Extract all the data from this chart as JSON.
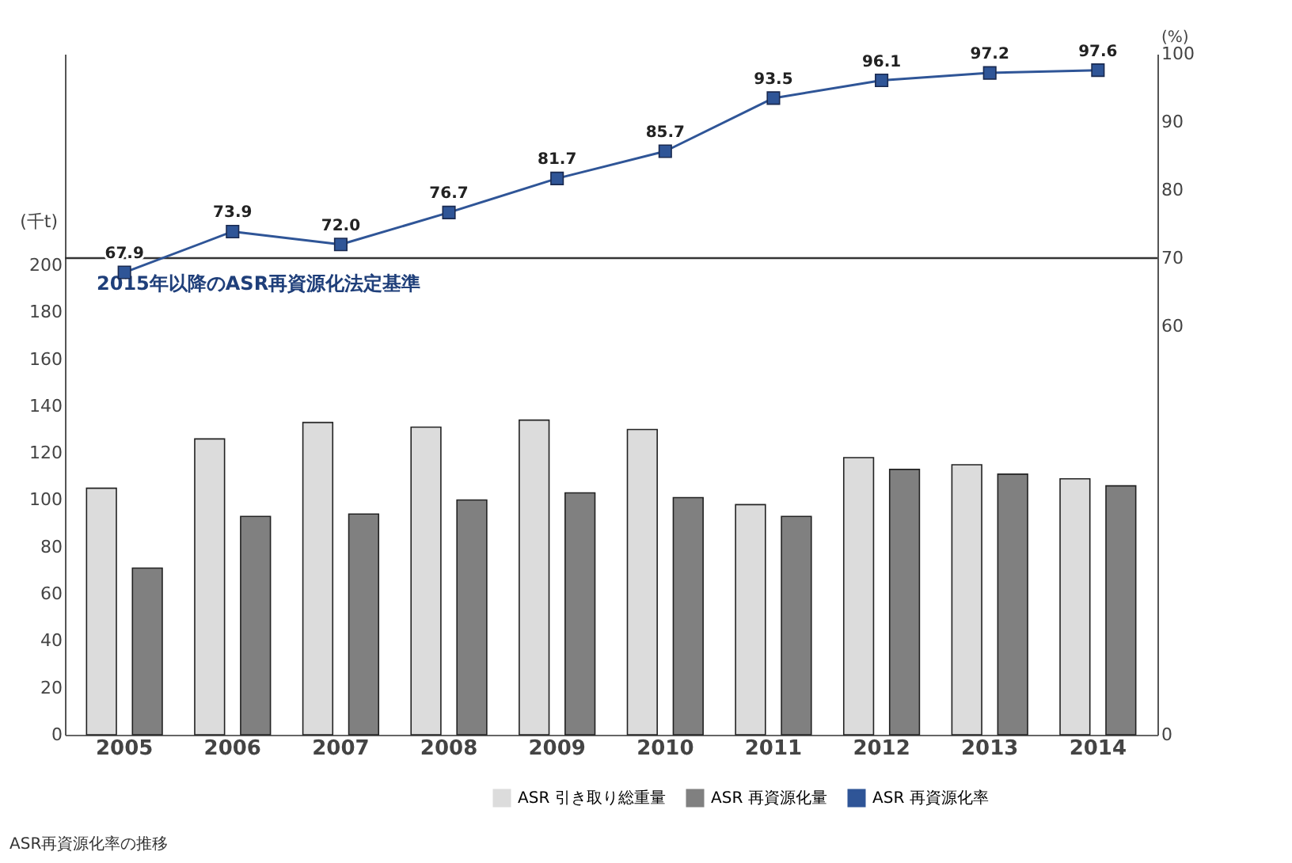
{
  "chart_data": {
    "type": "bar",
    "categories": [
      "2005",
      "2006",
      "2007",
      "2008",
      "2009",
      "2010",
      "2011",
      "2012",
      "2013",
      "2014"
    ],
    "ylabel": "(千t)",
    "y2label": "(%)",
    "ylim": [
      0,
      290
    ],
    "yticks": [
      0,
      20,
      40,
      60,
      80,
      100,
      120,
      140,
      160,
      180,
      200
    ],
    "y2lim": [
      0,
      100
    ],
    "y2ticks": [
      0,
      60,
      70,
      80,
      90,
      100
    ],
    "series": [
      {
        "name": "ASR 引き取り総重量",
        "color": "#dcdcdc",
        "values": [
          105,
          126,
          133,
          131,
          134,
          130,
          98,
          118,
          115,
          109
        ]
      },
      {
        "name": "ASR 再資源化量",
        "color": "#808080",
        "values": [
          71,
          93,
          94,
          100,
          103,
          101,
          93,
          113,
          111,
          106
        ]
      },
      {
        "name": "ASR 再資源化率",
        "type": "line",
        "axis": "y2",
        "color": "#2f5597",
        "marker": "square",
        "values": [
          67.9,
          73.9,
          72.0,
          76.7,
          81.7,
          85.7,
          93.5,
          96.1,
          97.2,
          97.6
        ],
        "value_labels": [
          "67.9",
          "73.9",
          "72.0",
          "76.7",
          "81.7",
          "85.7",
          "93.5",
          "96.1",
          "97.2",
          "97.6"
        ]
      }
    ],
    "ref_lines": [
      {
        "axis": "y2",
        "value": 70,
        "label": "2015年以降のASR再資源化法定基準",
        "color": "#333333"
      }
    ],
    "annotations": [
      "ASR再資源化率の推移"
    ],
    "legend": "bottom right",
    "grid": false
  }
}
